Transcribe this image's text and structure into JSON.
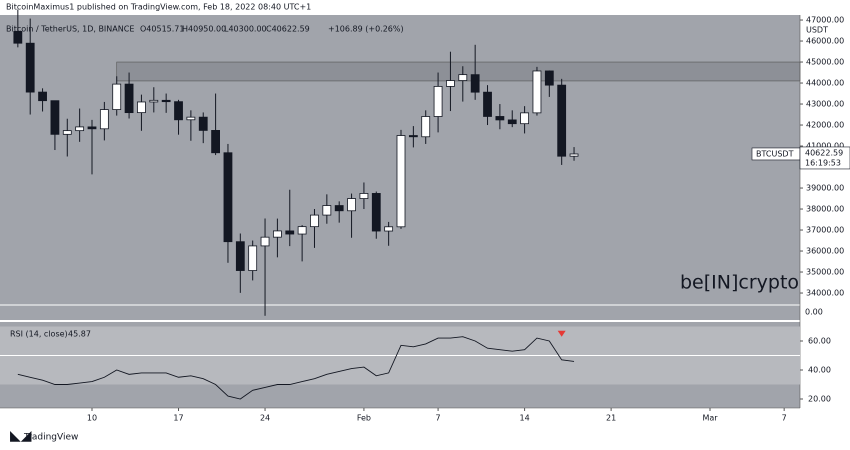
{
  "header": {
    "published": "BitcoinMaximus1 published on TradingView.com, Feb 18, 2022 08:40 UTC+1",
    "brand": "TradingView"
  },
  "chart_data": {
    "type": "candlestick",
    "title": "Bitcoin / TetherUS, 1D, BINANCE",
    "ohlc_text": [
      "O40515.71",
      "H40950.00",
      "L40300.00",
      "C40622.59",
      "+106.89 (+0.26%)"
    ],
    "currency": "USDT",
    "x": [
      "2022-01-04",
      "2022-01-05",
      "2022-01-06",
      "2022-01-07",
      "2022-01-08",
      "2022-01-09",
      "2022-01-10",
      "2022-01-11",
      "2022-01-12",
      "2022-01-13",
      "2022-01-14",
      "2022-01-15",
      "2022-01-16",
      "2022-01-17",
      "2022-01-18",
      "2022-01-19",
      "2022-01-20",
      "2022-01-21",
      "2022-01-22",
      "2022-01-23",
      "2022-01-24",
      "2022-01-25",
      "2022-01-26",
      "2022-01-27",
      "2022-01-28",
      "2022-01-29",
      "2022-01-30",
      "2022-01-31",
      "2022-02-01",
      "2022-02-02",
      "2022-02-03",
      "2022-02-04",
      "2022-02-05",
      "2022-02-06",
      "2022-02-07",
      "2022-02-08",
      "2022-02-09",
      "2022-02-10",
      "2022-02-11",
      "2022-02-12",
      "2022-02-13",
      "2022-02-14",
      "2022-02-15",
      "2022-02-16",
      "2022-02-17",
      "2022-02-18"
    ],
    "open": [
      46458,
      45897,
      43569,
      43160,
      41557,
      41733,
      41911,
      41821,
      42735,
      43949,
      42591,
      43099,
      43177,
      43113,
      42250,
      42375,
      41744,
      40680,
      36445,
      35071,
      36244,
      36660,
      36958,
      36809,
      37161,
      37712,
      38166,
      37917,
      38498,
      38743,
      36952,
      37154,
      41500,
      41441,
      42406,
      43840,
      44118,
      44400,
      43565,
      42408,
      42244,
      42064,
      42580,
      44575,
      43900,
      40515.71
    ],
    "high": [
      47500,
      47070,
      43748,
      43160,
      42300,
      42786,
      42248,
      43100,
      44322,
      44500,
      43448,
      43800,
      43500,
      43200,
      42700,
      42600,
      43500,
      41100,
      36835,
      36500,
      37550,
      37545,
      38919,
      37234,
      38000,
      38700,
      38366,
      38737,
      39265,
      38832,
      37387,
      41772,
      41950,
      42700,
      44500,
      45492,
      44800,
      45821,
      43900,
      43000,
      42700,
      42900,
      44771,
      44600,
      44200,
      40950
    ],
    "low": [
      45700,
      42500,
      42645,
      40810,
      40501,
      41200,
      39650,
      41268,
      42450,
      42311,
      41725,
      42600,
      42581,
      41540,
      41250,
      41138,
      40570,
      35440,
      34008,
      34601,
      32917,
      35700,
      36234,
      35507,
      36150,
      37300,
      37352,
      36632,
      38000,
      36586,
      36250,
      37054,
      40935,
      41100,
      41650,
      42666,
      43117,
      43200,
      42000,
      41800,
      41900,
      41600,
      42450,
      43339,
      40100,
      40300
    ],
    "close": [
      45897,
      43569,
      43160,
      41557,
      41733,
      41911,
      41821,
      42735,
      43949,
      42591,
      43099,
      43177,
      43113,
      42250,
      42375,
      41744,
      40680,
      36445,
      35071,
      36244,
      36660,
      36958,
      36809,
      37161,
      37712,
      38166,
      37917,
      38498,
      38743,
      36952,
      37154,
      41500,
      41441,
      42406,
      43840,
      44118,
      44400,
      43565,
      42408,
      42244,
      42064,
      42580,
      44575,
      43900,
      40515.71,
      40622.59
    ],
    "up_color": "#ffffff",
    "down_color": "#131722",
    "ylim": [
      33430,
      47240
    ],
    "yticks": [
      {
        "value": 34000,
        "label": "34000.00"
      },
      {
        "value": 35000,
        "label": "35000.00"
      },
      {
        "value": 36000,
        "label": "36000.00"
      },
      {
        "value": 37000,
        "label": "37000.00"
      },
      {
        "value": 38000,
        "label": "38000.00"
      },
      {
        "value": 39000,
        "label": "39000.00"
      },
      {
        "value": 41000,
        "label": "41000.00"
      },
      {
        "value": 42000,
        "label": "42000.00"
      },
      {
        "value": 43000,
        "label": "43000.00"
      },
      {
        "value": 44000,
        "label": "44000.00"
      },
      {
        "value": 45000,
        "label": "45000.00"
      },
      {
        "value": 46000,
        "label": "46000.00"
      },
      {
        "value": 47000,
        "label": "47000.00"
      }
    ],
    "xticks": [
      {
        "value": "2022-01-10",
        "label": "10"
      },
      {
        "value": "2022-01-17",
        "label": "17"
      },
      {
        "value": "2022-01-24",
        "label": "24"
      },
      {
        "value": "2022-02-01",
        "label": "Feb"
      },
      {
        "value": "2022-02-07",
        "label": "7"
      },
      {
        "value": "2022-02-14",
        "label": "14"
      },
      {
        "value": "2022-02-21",
        "label": "21"
      },
      {
        "value": "2022-03-01",
        "label": "Mar"
      },
      {
        "value": "2022-03-07",
        "label": "7"
      }
    ],
    "resistance_zone": {
      "from": "2022-01-12",
      "low": 44100,
      "high": 45000,
      "color": "#7d8087"
    },
    "symbol_label": "BTCUSDT",
    "last_price_label": "40622.59",
    "countdown": "16:19:53",
    "volume_scale_label": "0.00",
    "watermark": "be[IN]crypto",
    "rsi": {
      "label": "RSI (14, close)",
      "last_label": "45.87",
      "values": [
        37,
        35,
        33,
        30,
        30,
        31,
        32,
        35,
        40,
        37,
        38,
        38,
        38,
        35,
        36,
        34,
        30,
        22,
        20,
        26,
        28,
        30,
        30,
        32,
        34,
        37,
        39,
        41,
        42,
        36,
        38,
        57,
        56,
        58,
        62,
        62,
        63,
        60,
        55,
        54,
        53,
        54,
        62,
        60,
        47,
        45.87
      ],
      "color": "#131722",
      "ylim": [
        13.8,
        73.1
      ],
      "yticks": [
        {
          "value": 20,
          "label": "20.00"
        },
        {
          "value": 40,
          "label": "40.00"
        },
        {
          "value": 60,
          "label": "60.00"
        }
      ],
      "band": [
        30,
        70
      ],
      "midline": 50,
      "signal": {
        "x": "2022-02-17",
        "value": 65,
        "color": "#e53935"
      }
    }
  }
}
